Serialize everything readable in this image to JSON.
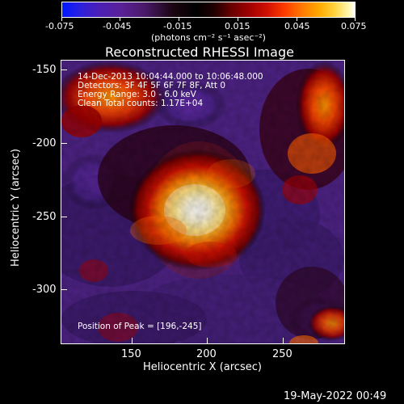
{
  "colorbar": {
    "tick_labels": [
      "-0.075",
      "-0.045",
      "-0.015",
      "0.015",
      "0.045",
      "0.075"
    ],
    "units_label": "(photons cm⁻² s⁻¹ asec⁻²)",
    "range": [
      -0.075,
      0.075
    ]
  },
  "plot": {
    "title": "Reconstructed RHESSI Image",
    "xlabel": "Heliocentric X (arcsec)",
    "ylabel": "Heliocentric Y (arcsec)",
    "x_ticks": [
      "150",
      "200",
      "250"
    ],
    "y_ticks": [
      "-150",
      "-200",
      "-250",
      "-300"
    ],
    "x_range": [
      105,
      292
    ],
    "y_range": [
      -335,
      -144
    ]
  },
  "annotations": {
    "time_range": "14-Dec-2013 10:04:44.000 to 10:06:48.000",
    "detectors": "Detectors: 3F 4F 5F 6F 7F 8F, Att 0",
    "energy_range": "Energy Range: 3.0 - 6.0 keV",
    "clean_counts": "Clean    Total counts: 1.17E+04",
    "peak_position": "Position of Peak = [196,-245]"
  },
  "footer": {
    "timestamp": "19-May-2022 00:49"
  },
  "colors": {
    "background": "#000000",
    "purple_low": "#5b2a9a",
    "peak_white": "#fffbd6",
    "hot_orange": "#ff7a00",
    "dark_red": "#8b1a1a"
  }
}
